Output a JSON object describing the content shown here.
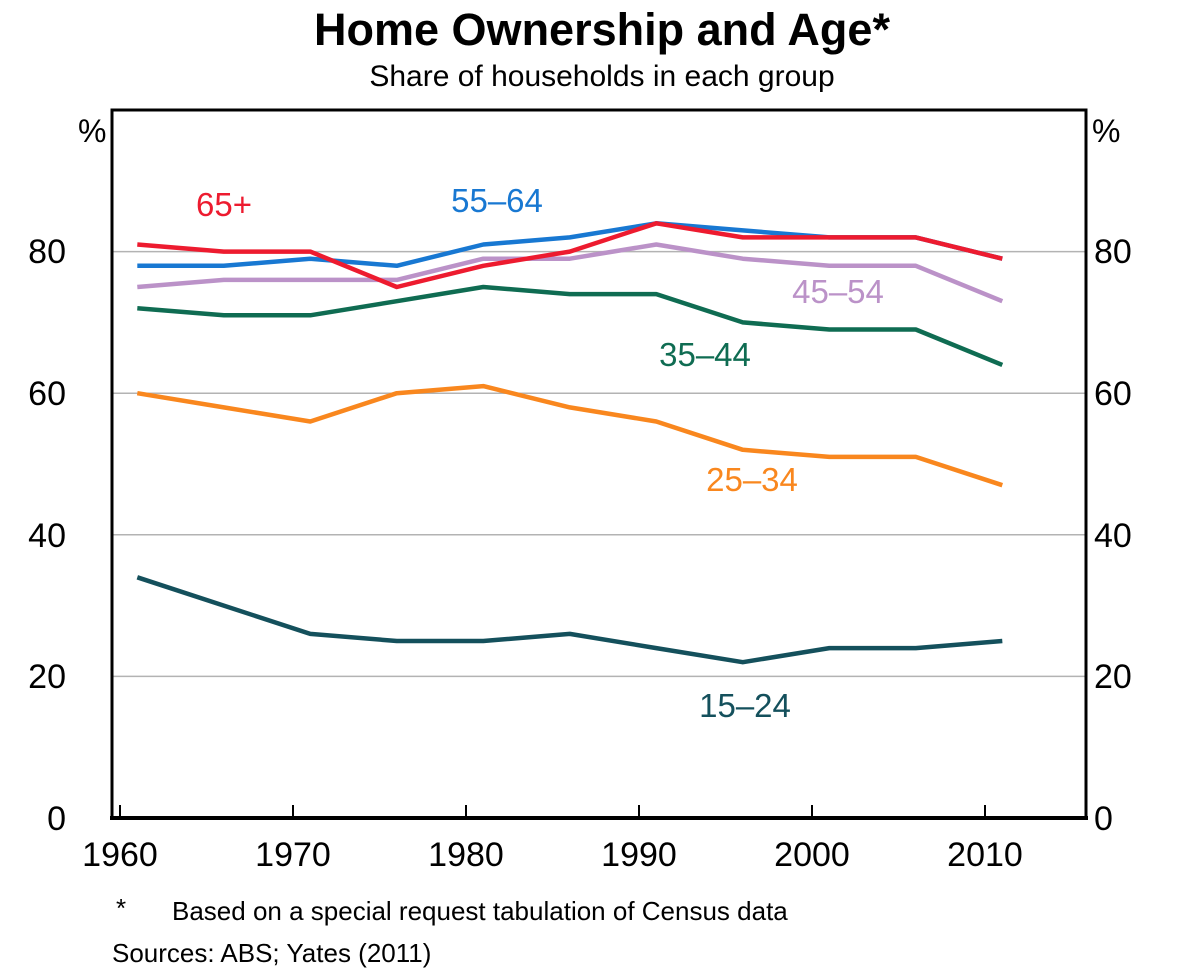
{
  "title": "Home Ownership and Age*",
  "subtitle": "Share of households in each group",
  "percent_symbol": "%",
  "footnote_marker": "*",
  "footnote": "Based on a special request tabulation of Census data",
  "sources": "Sources:  ABS; Yates (2011)",
  "chart_data": {
    "type": "line",
    "x": [
      1961,
      1966,
      1971,
      1976,
      1981,
      1986,
      1991,
      1996,
      2001,
      2006,
      2011
    ],
    "xticks": [
      1960,
      1970,
      1980,
      1990,
      2000,
      2010
    ],
    "yticks": [
      0,
      20,
      40,
      60,
      80
    ],
    "ylim": [
      0,
      100
    ],
    "xlim": [
      1960,
      2016
    ],
    "ylabel": "%",
    "grid": "horizontal",
    "legend_position": "inline-labels",
    "gridline_color": "#b3b3b3",
    "axis_color": "#000000",
    "series": [
      {
        "name": "65+",
        "color": "#ed1b2f",
        "values": [
          81,
          80,
          80,
          75,
          78,
          80,
          84,
          82,
          82,
          82,
          79
        ]
      },
      {
        "name": "55–64",
        "color": "#1878d2",
        "values": [
          78,
          78,
          79,
          78,
          81,
          82,
          84,
          83,
          82,
          82,
          79
        ]
      },
      {
        "name": "45–54",
        "color": "#bb92c8",
        "values": [
          75,
          76,
          76,
          76,
          79,
          79,
          81,
          79,
          78,
          78,
          73
        ]
      },
      {
        "name": "35–44",
        "color": "#0f6c52",
        "values": [
          72,
          71,
          71,
          73,
          75,
          74,
          74,
          70,
          69,
          69,
          64
        ]
      },
      {
        "name": "25–34",
        "color": "#f9871e",
        "values": [
          60,
          58,
          56,
          60,
          61,
          58,
          56,
          52,
          51,
          51,
          47
        ]
      },
      {
        "name": "15–24",
        "color": "#14505c",
        "values": [
          34,
          30,
          26,
          25,
          25,
          26,
          24,
          22,
          24,
          24,
          25
        ]
      }
    ]
  }
}
